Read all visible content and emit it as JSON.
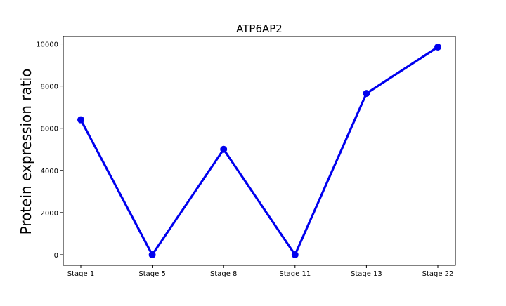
{
  "chart_data": {
    "type": "line",
    "title": "ATP6AP2",
    "xlabel": "",
    "ylabel": "Protein expression ratio",
    "categories": [
      "Stage 1",
      "Stage 5",
      "Stage 8",
      "Stage 11",
      "Stage 13",
      "Stage 22"
    ],
    "series": [
      {
        "values": [
          6400,
          0,
          5000,
          0,
          7650,
          9850
        ],
        "color": "#0000ee"
      }
    ],
    "ylim": [
      -500,
      10350
    ],
    "yticks": [
      0,
      2000,
      4000,
      6000,
      8000,
      10000
    ],
    "grid": false,
    "legend": "none"
  }
}
